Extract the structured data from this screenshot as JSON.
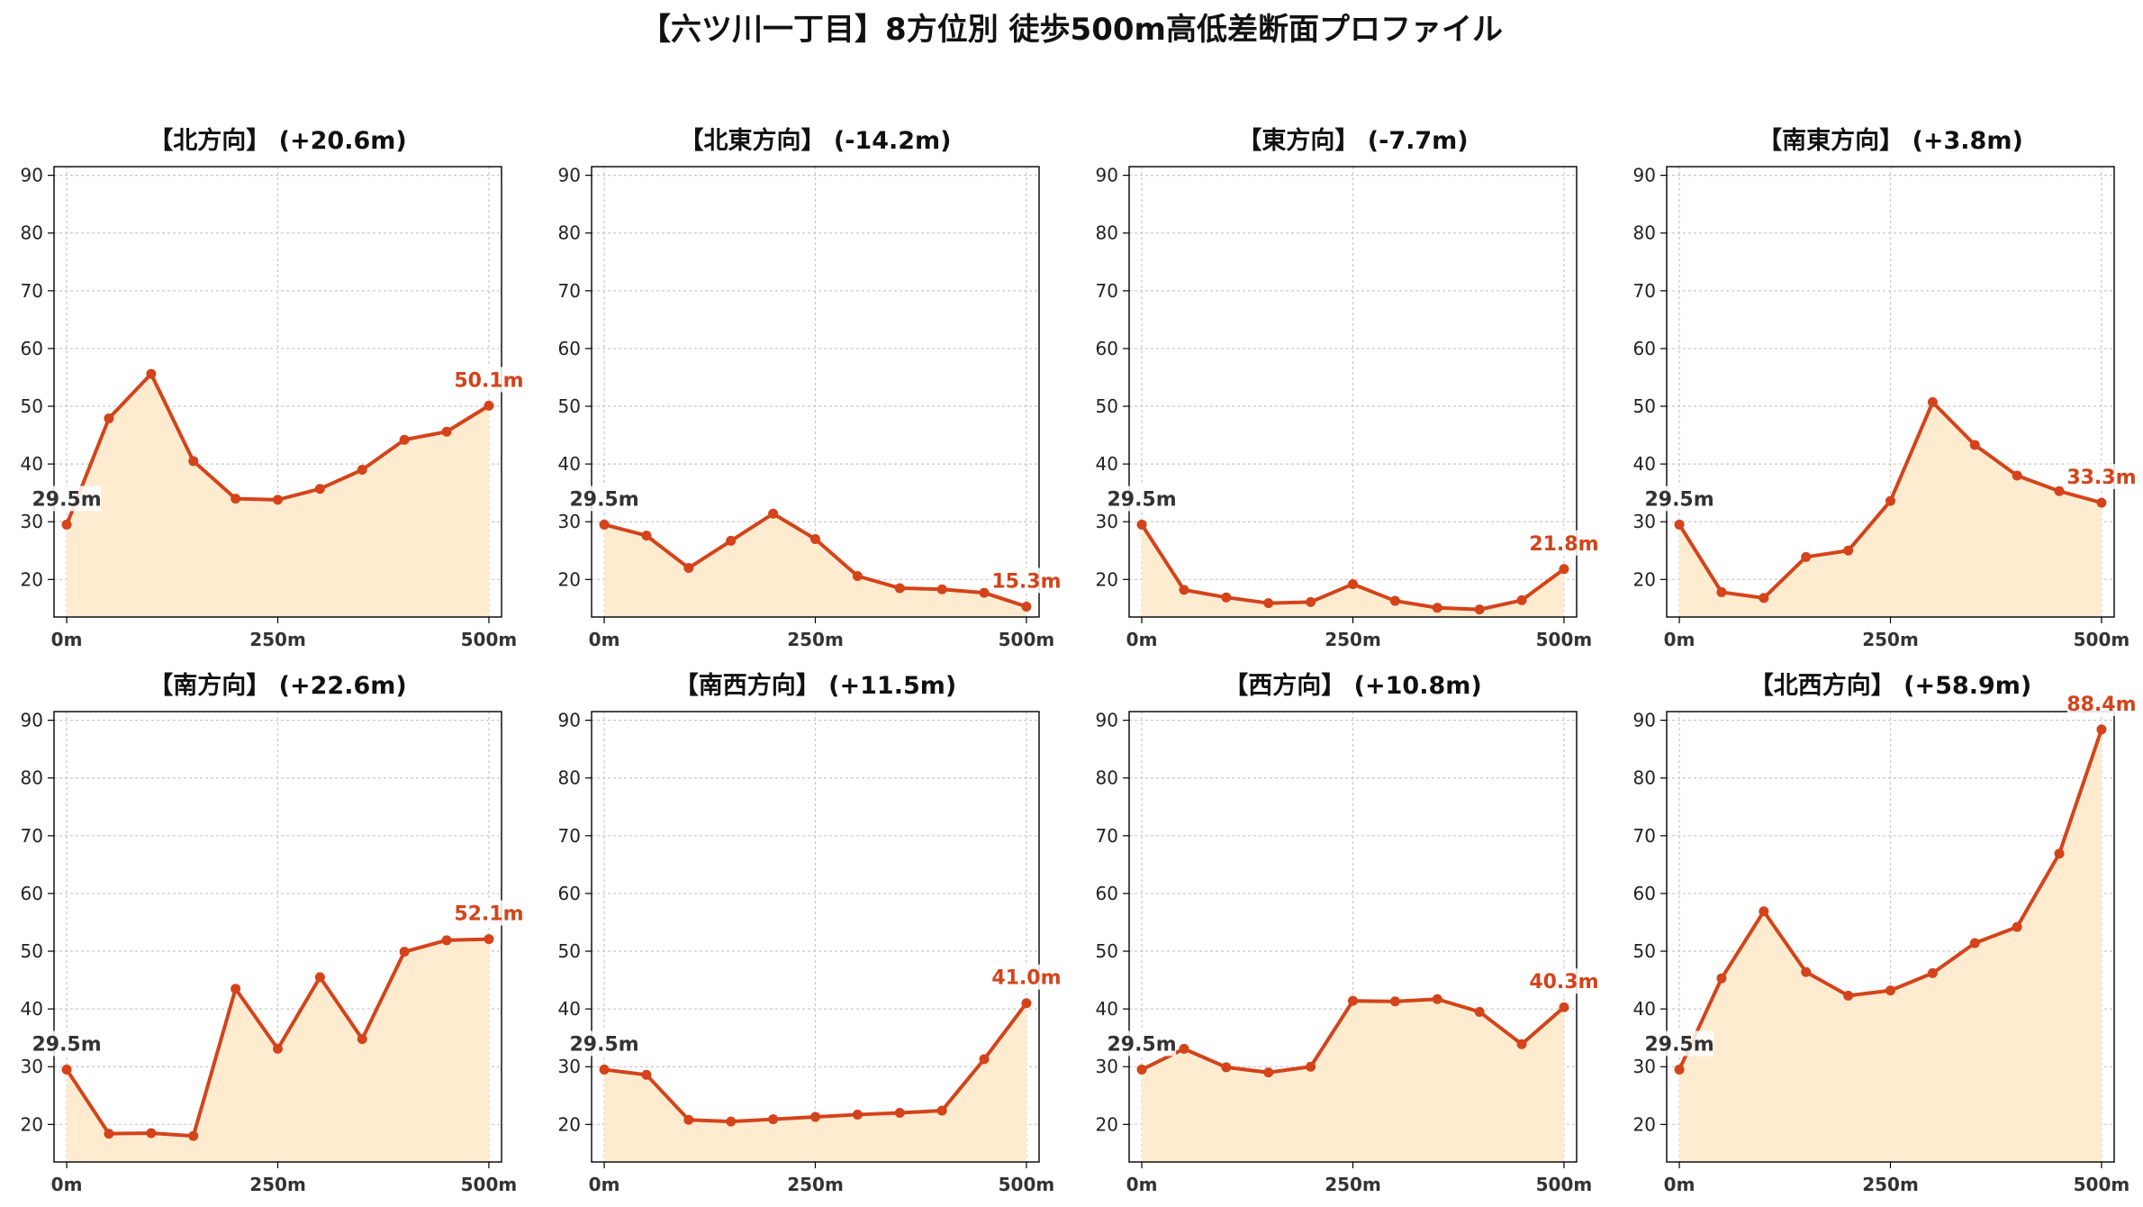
{
  "title": "【六ツ川一丁目】8方位別 徒歩500m高低差断面プロファイル",
  "colors": {
    "line": "#d4431a",
    "fill": "#ffecd0",
    "end_label": "#d4431a",
    "start_label": "#333333"
  },
  "chart_data": [
    {
      "type": "area",
      "title": "【北方向】 (+20.6m)",
      "x": [
        0,
        50,
        100,
        150,
        200,
        250,
        300,
        350,
        400,
        450,
        500
      ],
      "values": [
        29.5,
        47.9,
        55.6,
        40.5,
        34.0,
        33.8,
        35.7,
        39.0,
        44.2,
        45.6,
        50.1
      ],
      "start_label": "29.5m",
      "end_label": "50.1m",
      "xticks": [
        0,
        250,
        500
      ],
      "xtick_labels": [
        "0m",
        "250m",
        "500m"
      ],
      "yticks": [
        20,
        30,
        40,
        50,
        60,
        70,
        80,
        90
      ],
      "ytick_labels": [
        "20",
        "30",
        "40",
        "50",
        "60",
        "70",
        "80",
        "90"
      ],
      "xlim": [
        -15,
        515
      ],
      "ylim": [
        13.5,
        91.5
      ],
      "grid": true
    },
    {
      "type": "area",
      "title": "【北東方向】 (-14.2m)",
      "x": [
        0,
        50,
        100,
        150,
        200,
        250,
        300,
        350,
        400,
        450,
        500
      ],
      "values": [
        29.5,
        27.6,
        22.0,
        26.7,
        31.4,
        27.0,
        20.6,
        18.5,
        18.3,
        17.7,
        15.3
      ],
      "start_label": "29.5m",
      "end_label": "15.3m",
      "xticks": [
        0,
        250,
        500
      ],
      "xtick_labels": [
        "0m",
        "250m",
        "500m"
      ],
      "yticks": [
        20,
        30,
        40,
        50,
        60,
        70,
        80,
        90
      ],
      "ytick_labels": [
        "20",
        "30",
        "40",
        "50",
        "60",
        "70",
        "80",
        "90"
      ],
      "xlim": [
        -15,
        515
      ],
      "ylim": [
        13.5,
        91.5
      ],
      "grid": true
    },
    {
      "type": "area",
      "title": "【東方向】 (-7.7m)",
      "x": [
        0,
        50,
        100,
        150,
        200,
        250,
        300,
        350,
        400,
        450,
        500
      ],
      "values": [
        29.5,
        18.2,
        16.9,
        15.9,
        16.1,
        19.2,
        16.3,
        15.1,
        14.8,
        16.4,
        21.8
      ],
      "start_label": "29.5m",
      "end_label": "21.8m",
      "xticks": [
        0,
        250,
        500
      ],
      "xtick_labels": [
        "0m",
        "250m",
        "500m"
      ],
      "yticks": [
        20,
        30,
        40,
        50,
        60,
        70,
        80,
        90
      ],
      "ytick_labels": [
        "20",
        "30",
        "40",
        "50",
        "60",
        "70",
        "80",
        "90"
      ],
      "xlim": [
        -15,
        515
      ],
      "ylim": [
        13.5,
        91.5
      ],
      "grid": true
    },
    {
      "type": "area",
      "title": "【南東方向】 (+3.8m)",
      "x": [
        0,
        50,
        100,
        150,
        200,
        250,
        300,
        350,
        400,
        450,
        500
      ],
      "values": [
        29.5,
        17.8,
        16.8,
        23.9,
        25.0,
        33.6,
        50.7,
        43.3,
        38.0,
        35.3,
        33.3
      ],
      "start_label": "29.5m",
      "end_label": "33.3m",
      "xticks": [
        0,
        250,
        500
      ],
      "xtick_labels": [
        "0m",
        "250m",
        "500m"
      ],
      "yticks": [
        20,
        30,
        40,
        50,
        60,
        70,
        80,
        90
      ],
      "ytick_labels": [
        "20",
        "30",
        "40",
        "50",
        "60",
        "70",
        "80",
        "90"
      ],
      "xlim": [
        -15,
        515
      ],
      "ylim": [
        13.5,
        91.5
      ],
      "grid": true
    },
    {
      "type": "area",
      "title": "【南方向】 (+22.6m)",
      "x": [
        0,
        50,
        100,
        150,
        200,
        250,
        300,
        350,
        400,
        450,
        500
      ],
      "values": [
        29.5,
        18.4,
        18.5,
        18.0,
        43.5,
        33.1,
        45.5,
        34.8,
        49.9,
        51.9,
        52.1
      ],
      "start_label": "29.5m",
      "end_label": "52.1m",
      "xticks": [
        0,
        250,
        500
      ],
      "xtick_labels": [
        "0m",
        "250m",
        "500m"
      ],
      "yticks": [
        20,
        30,
        40,
        50,
        60,
        70,
        80,
        90
      ],
      "ytick_labels": [
        "20",
        "30",
        "40",
        "50",
        "60",
        "70",
        "80",
        "90"
      ],
      "xlim": [
        -15,
        515
      ],
      "ylim": [
        13.5,
        91.5
      ],
      "grid": true
    },
    {
      "type": "area",
      "title": "【南西方向】 (+11.5m)",
      "x": [
        0,
        50,
        100,
        150,
        200,
        250,
        300,
        350,
        400,
        450,
        500
      ],
      "values": [
        29.5,
        28.6,
        20.8,
        20.5,
        20.9,
        21.3,
        21.7,
        22.0,
        22.4,
        31.3,
        41.0
      ],
      "start_label": "29.5m",
      "end_label": "41.0m",
      "xticks": [
        0,
        250,
        500
      ],
      "xtick_labels": [
        "0m",
        "250m",
        "500m"
      ],
      "yticks": [
        20,
        30,
        40,
        50,
        60,
        70,
        80,
        90
      ],
      "ytick_labels": [
        "20",
        "30",
        "40",
        "50",
        "60",
        "70",
        "80",
        "90"
      ],
      "xlim": [
        -15,
        515
      ],
      "ylim": [
        13.5,
        91.5
      ],
      "grid": true
    },
    {
      "type": "area",
      "title": "【西方向】 (+10.8m)",
      "x": [
        0,
        50,
        100,
        150,
        200,
        250,
        300,
        350,
        400,
        450,
        500
      ],
      "values": [
        29.5,
        33.1,
        29.9,
        29.0,
        30.0,
        41.4,
        41.3,
        41.7,
        39.5,
        33.9,
        40.3
      ],
      "start_label": "29.5m",
      "end_label": "40.3m",
      "xticks": [
        0,
        250,
        500
      ],
      "xtick_labels": [
        "0m",
        "250m",
        "500m"
      ],
      "yticks": [
        20,
        30,
        40,
        50,
        60,
        70,
        80,
        90
      ],
      "ytick_labels": [
        "20",
        "30",
        "40",
        "50",
        "60",
        "70",
        "80",
        "90"
      ],
      "xlim": [
        -15,
        515
      ],
      "ylim": [
        13.5,
        91.5
      ],
      "grid": true
    },
    {
      "type": "area",
      "title": "【北西方向】 (+58.9m)",
      "x": [
        0,
        50,
        100,
        150,
        200,
        250,
        300,
        350,
        400,
        450,
        500
      ],
      "values": [
        29.5,
        45.3,
        56.9,
        46.4,
        42.3,
        43.2,
        46.2,
        51.4,
        54.2,
        66.9,
        88.4
      ],
      "start_label": "29.5m",
      "end_label": "88.4m",
      "xticks": [
        0,
        250,
        500
      ],
      "xtick_labels": [
        "0m",
        "250m",
        "500m"
      ],
      "yticks": [
        20,
        30,
        40,
        50,
        60,
        70,
        80,
        90
      ],
      "ytick_labels": [
        "20",
        "30",
        "40",
        "50",
        "60",
        "70",
        "80",
        "90"
      ],
      "xlim": [
        -15,
        515
      ],
      "ylim": [
        13.5,
        91.5
      ],
      "grid": true
    }
  ]
}
